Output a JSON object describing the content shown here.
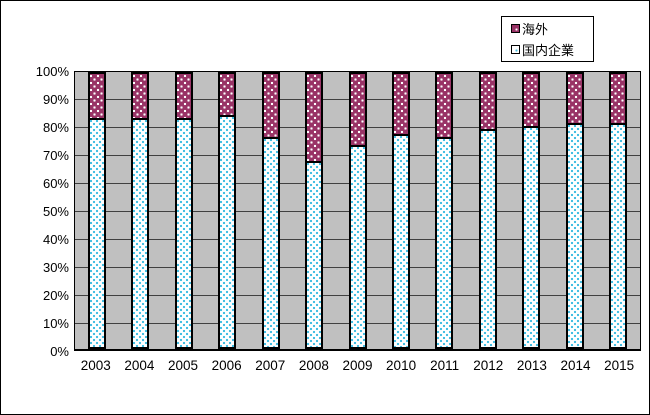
{
  "chart_data": {
    "type": "bar",
    "stacked": true,
    "percent_stacked": true,
    "title": "",
    "xlabel": "",
    "ylabel": "",
    "categories": [
      "2003",
      "2004",
      "2005",
      "2006",
      "2007",
      "2008",
      "2009",
      "2010",
      "2011",
      "2012",
      "2013",
      "2014",
      "2015"
    ],
    "series": [
      {
        "name": "海外",
        "color": "#993366",
        "pattern": "white-dots-on-plum",
        "values": [
          16,
          16,
          16,
          15,
          23,
          32,
          26,
          22,
          23,
          20,
          19,
          18,
          18
        ]
      },
      {
        "name": "国内企業",
        "color": "#FFFFFF",
        "pattern": "cyan-dots-on-white",
        "values": [
          84,
          84,
          84,
          85,
          77,
          68,
          74,
          78,
          77,
          80,
          81,
          82,
          82
        ]
      }
    ],
    "ylim": [
      0,
      100
    ],
    "ytick_step": 10,
    "ytick_labels": [
      "0%",
      "10%",
      "20%",
      "30%",
      "40%",
      "50%",
      "60%",
      "70%",
      "80%",
      "90%",
      "100%"
    ],
    "grid": true,
    "gridline_orientation": "horizontal",
    "plot_background": "#C0C0C0",
    "legend_position": "top-right",
    "legend_entries": [
      "海外",
      "国内企業"
    ]
  },
  "colors": {
    "overseas_fill": "#993366",
    "overseas_dot": "#FFFFFF",
    "domestic_fill": "#FFFFFF",
    "domestic_dot": "#45BFE3",
    "plot_background": "#C0C0C0",
    "gridline": "#404040",
    "axis_text": "#000000",
    "chart_border": "#000000"
  }
}
